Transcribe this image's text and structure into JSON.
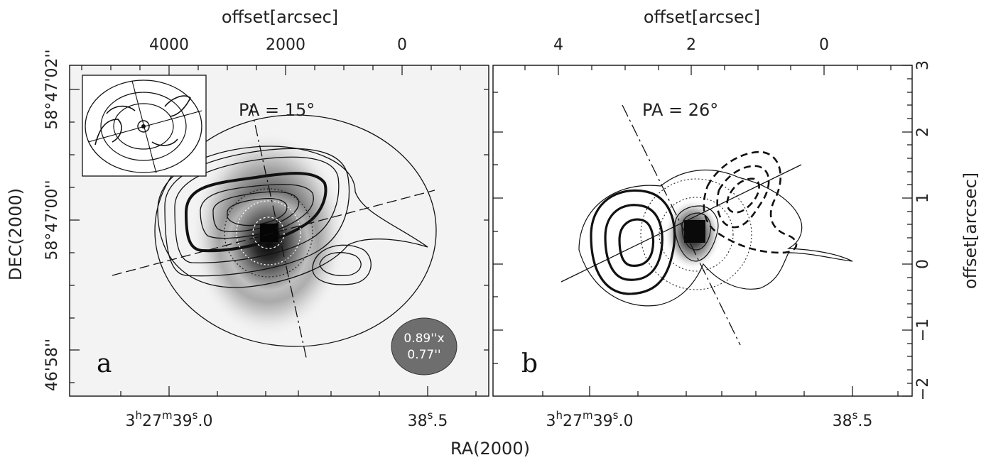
{
  "figure": {
    "top_axis_label": "offset[arcsec]",
    "left_axis_label": "DEC(2000)",
    "right_axis_label": "offset[arcsec]",
    "bottom_axis_label": "RA(2000)",
    "top_ticks_a": [
      "4000",
      "2000",
      "0"
    ],
    "top_ticks_b": [
      "4",
      "2",
      "0"
    ],
    "right_ticks": [
      "3",
      "2",
      "1",
      "0",
      "−1",
      "−2"
    ],
    "dec_ticks": [
      "58°47'02''",
      "58°47'00''",
      "46'58''"
    ],
    "ra_tick_a_main": {
      "h": "3",
      "h_sup": "h",
      "m": "27",
      "m_sup": "m",
      "s": "39",
      "s_sup": "s",
      "frac": ".0"
    },
    "ra_tick_a_right": {
      "s": "38",
      "s_sup": "s",
      "frac": ".5"
    },
    "ra_tick_b_main": {
      "h": "3",
      "h_sup": "h",
      "m": "27",
      "m_sup": "m",
      "s": "39",
      "s_sup": "s",
      "frac": ".0"
    },
    "ra_tick_b_right": {
      "s": "38",
      "s_sup": "s",
      "frac": ".5"
    }
  },
  "panels": [
    {
      "id": "a",
      "label": "a",
      "pa_text": "PA  =  15°",
      "beam_line1": "0.89''x",
      "beam_line2": "0.77''"
    },
    {
      "id": "b",
      "label": "b",
      "pa_text": "PA  =  26°"
    }
  ],
  "colors": {
    "beam_fill": "#6e6e6e",
    "background": "#ffffff",
    "line": "#111111"
  }
}
